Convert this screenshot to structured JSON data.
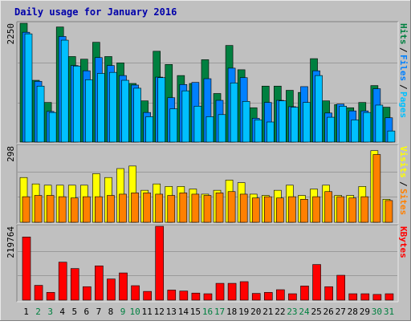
{
  "title": "Daily usage for January 2016",
  "colors": {
    "page_bg": "#C0C0C0",
    "frame_light": "#E8E8E8",
    "frame_dark": "#808080",
    "title_text": "#0000AA",
    "hits": "#008040",
    "files": "#0080FF",
    "pages": "#00C0FF",
    "visits": "#FFFF00",
    "sites": "#FF8000",
    "kbytes": "#FF0000",
    "weekday_label": "#000000",
    "weekend_label": "#008040"
  },
  "chart_data": {
    "type": "bar",
    "categories": [
      "1",
      "2",
      "3",
      "4",
      "5",
      "6",
      "7",
      "8",
      "9",
      "10",
      "11",
      "12",
      "13",
      "14",
      "15",
      "16",
      "17",
      "18",
      "19",
      "20",
      "21",
      "22",
      "23",
      "24",
      "25",
      "26",
      "27",
      "28",
      "29",
      "30",
      "31"
    ],
    "weekend_days": [
      "2",
      "3",
      "9",
      "10",
      "16",
      "17",
      "23",
      "24",
      "30",
      "31"
    ],
    "panels": [
      {
        "id": "requests",
        "ymax_label": "2250",
        "ylim": [
          0,
          2250
        ],
        "legend": [
          "Pages",
          "Files",
          "Hits"
        ],
        "series": [
          {
            "name": "Hits",
            "color": "#008040",
            "values": [
              2250,
              1170,
              750,
              2180,
              1620,
              1570,
              1890,
              1620,
              1500,
              1110,
              780,
              1720,
              1470,
              1260,
              1110,
              1560,
              920,
              1830,
              1370,
              650,
              1060,
              1060,
              980,
              940,
              1580,
              780,
              710,
              650,
              750,
              1070,
              660
            ]
          },
          {
            "name": "Files",
            "color": "#0080FF",
            "values": [
              2080,
              1150,
              580,
              2000,
              1450,
              1350,
              1600,
              1450,
              1260,
              1080,
              560,
              1230,
              840,
              1090,
              1130,
              1200,
              790,
              1400,
              1220,
              450,
              750,
              790,
              670,
              1050,
              1350,
              550,
              720,
              590,
              590,
              1010,
              460
            ]
          },
          {
            "name": "Pages",
            "color": "#00C0FF",
            "values": [
              2050,
              1060,
              560,
              1930,
              1440,
              1180,
              1300,
              1320,
              1170,
              1020,
              480,
              1220,
              630,
              970,
              680,
              480,
              520,
              1120,
              770,
              420,
              380,
              780,
              660,
              750,
              1260,
              470,
              680,
              420,
              560,
              700,
              210
            ]
          }
        ]
      },
      {
        "id": "visitors",
        "ymax_label": "298",
        "ylim": [
          0,
          298
        ],
        "legend": [
          "Sites",
          "Visits"
        ],
        "series": [
          {
            "name": "Visits",
            "color": "#FFFF00",
            "values": [
              175,
              150,
              145,
              145,
              145,
              145,
              190,
              175,
              210,
              220,
              125,
              150,
              140,
              140,
              130,
              110,
              125,
              165,
              155,
              110,
              105,
              125,
              145,
              105,
              130,
              145,
              105,
              105,
              140,
              280,
              90
            ]
          },
          {
            "name": "Sites",
            "color": "#FF8000",
            "values": [
              100,
              105,
              105,
              100,
              95,
              100,
              100,
              105,
              110,
              115,
              115,
              110,
              105,
              115,
              110,
              105,
              115,
              120,
              110,
              95,
              100,
              95,
              100,
              90,
              100,
              120,
              100,
              95,
              100,
              265,
              85
            ]
          }
        ]
      },
      {
        "id": "volume",
        "ymax_label": "219764",
        "ylim": [
          0,
          219764
        ],
        "legend": [
          "KBytes"
        ],
        "series": [
          {
            "name": "KBytes",
            "color": "#FF0000",
            "values": [
              188000,
              44000,
              23000,
              113000,
              94000,
              40000,
              102000,
              63000,
              81000,
              43000,
              26000,
              219764,
              30000,
              27000,
              21000,
              19000,
              50000,
              50000,
              55000,
              20000,
              23000,
              31000,
              19000,
              42000,
              106000,
              40000,
              74000,
              19000,
              19000,
              17000,
              19000
            ]
          }
        ]
      }
    ]
  }
}
